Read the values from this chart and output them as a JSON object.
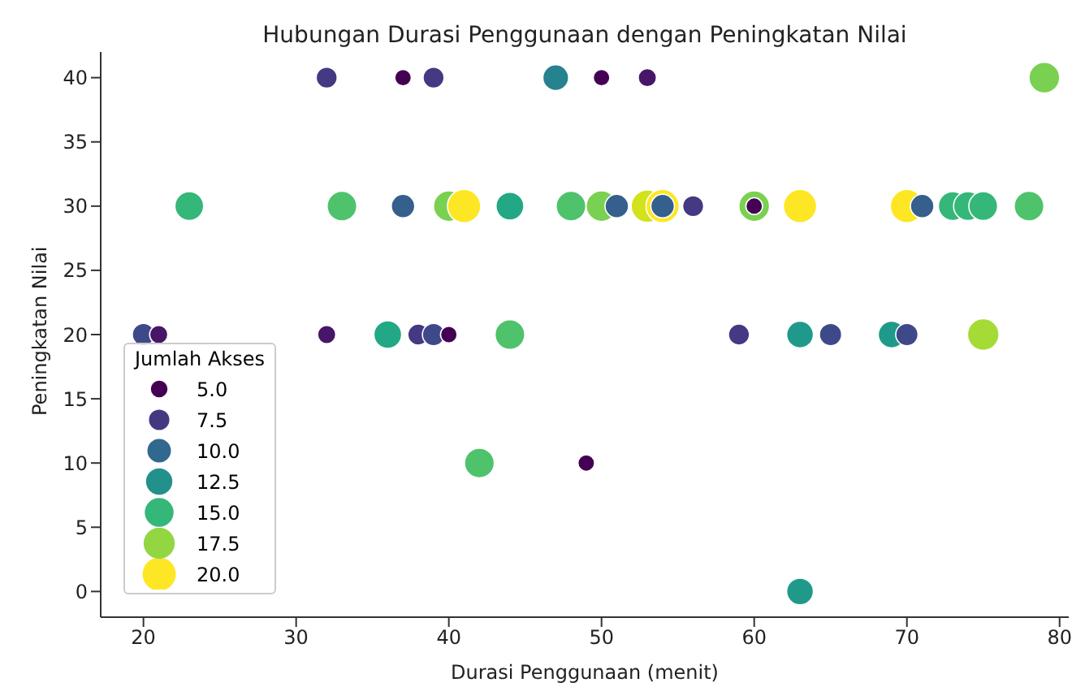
{
  "chart_data": {
    "type": "bubble",
    "title": "Hubungan Durasi Penggunaan dengan Peningkatan Nilai",
    "xlabel": "Durasi Penggunaan (menit)",
    "ylabel": "Peningkatan Nilai",
    "legend_title": "Jumlah Akses",
    "grid": false,
    "xlim": [
      17.2,
      80.6
    ],
    "xticks": [
      20,
      30,
      40,
      50,
      60,
      70,
      80
    ],
    "ylim": [
      -2,
      42
    ],
    "yticks": [
      0,
      5,
      10,
      15,
      20,
      25,
      30,
      35,
      40
    ],
    "size_legend": [
      {
        "value": 5,
        "label": "5.0"
      },
      7.5,
      {
        "value": 10,
        "label": "10.0"
      },
      12.5,
      {
        "value": 15,
        "label": "15.0"
      },
      17.5,
      {
        "value": 20,
        "label": "20.0"
      }
    ],
    "series": [
      {
        "x": [
          32,
          37,
          39,
          47,
          50,
          53,
          79,
          23,
          33,
          37,
          40,
          41,
          44,
          48,
          50,
          51,
          53,
          54,
          54,
          56,
          60,
          60,
          63,
          70,
          71,
          73,
          74,
          75,
          78,
          20,
          21,
          32,
          36,
          38,
          39,
          40,
          44,
          59,
          63,
          65,
          69,
          70,
          75,
          42,
          49,
          63
        ],
        "values": [
          40,
          40,
          40,
          40,
          40,
          40,
          40,
          30,
          30,
          30,
          30,
          30,
          30,
          30,
          30,
          30,
          30,
          30,
          30,
          30,
          30,
          30,
          30,
          30,
          30,
          30,
          30,
          30,
          30,
          20,
          20,
          20,
          20,
          20,
          20,
          20,
          20,
          20,
          20,
          20,
          20,
          20,
          20,
          10,
          10,
          0
        ],
        "sizes": [
          8,
          5,
          8,
          12,
          5,
          6,
          17,
          15,
          16,
          10,
          17,
          20,
          14,
          16,
          17,
          10,
          19,
          20,
          10,
          8,
          17,
          5,
          20,
          20,
          10,
          15,
          15,
          15,
          16,
          9,
          6,
          6,
          14,
          8,
          9,
          5,
          16,
          8,
          13,
          9,
          13,
          9,
          18,
          16,
          5,
          13
        ],
        "colors": [
          "#443983",
          "#440154",
          "#443983",
          "#26828e",
          "#440154",
          "#481668",
          "#7ad151",
          "#35b779",
          "#4ec36b",
          "#355f8d",
          "#7ad151",
          "#fde725",
          "#22a884",
          "#4ec36b",
          "#7ad151",
          "#355f8d",
          "#d2e21b",
          "#fde725",
          "#355f8d",
          "#443983",
          "#7ad151",
          "#440154",
          "#fde725",
          "#fde725",
          "#355f8d",
          "#35b779",
          "#35b779",
          "#35b779",
          "#4ec36b",
          "#3e4989",
          "#481668",
          "#481668",
          "#22a884",
          "#443983",
          "#3e4989",
          "#440154",
          "#4ec36b",
          "#443983",
          "#1f9a8a",
          "#3e4989",
          "#1f9a8a",
          "#3e4989",
          "#a5db36",
          "#4ec36b",
          "#440154",
          "#1f9a8a"
        ]
      }
    ]
  }
}
